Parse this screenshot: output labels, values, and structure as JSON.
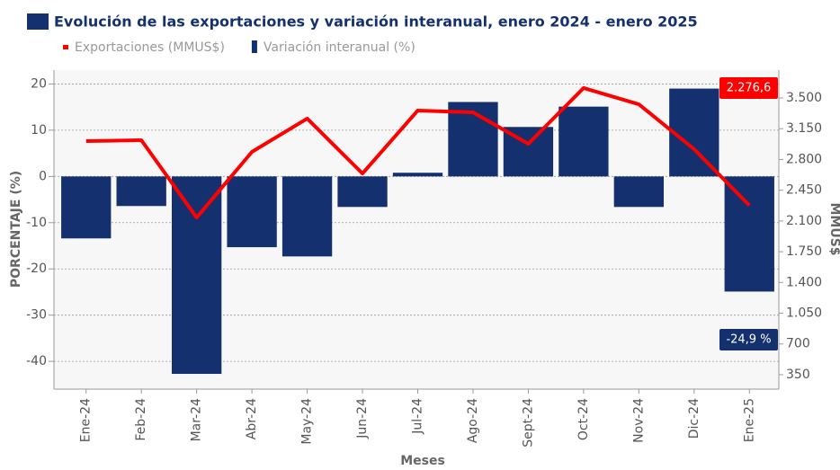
{
  "chart_data": {
    "type": "bar",
    "title": "Evolución de las exportaciones y variación interanual, enero 2024 - enero 2025",
    "x_label": "Meses",
    "y_label": "PORCENTAJE (%)",
    "y2_label": "MMUS$",
    "categories": [
      "Ene-24",
      "Feb-24",
      "Mar-24",
      "Abr-24",
      "May-24",
      "Jun-24",
      "Jul-24",
      "Ago-24",
      "Sept-24",
      "Oct-24",
      "Nov-24",
      "Dic-24",
      "Ene-25"
    ],
    "series": [
      {
        "name": "Exportaciones (MMUS$)",
        "type": "line",
        "axis": "y2",
        "color": "#ff0000",
        "values": [
          3009,
          3019,
          2139,
          2886,
          3265,
          2640,
          3357,
          3336,
          2978,
          3613,
          3428,
          2917,
          2276.6
        ],
        "value_labels": [
          null,
          null,
          null,
          null,
          null,
          null,
          null,
          null,
          null,
          null,
          null,
          null,
          "2.276,6"
        ]
      },
      {
        "name": "Variación interanual (%)",
        "type": "bar",
        "color": "#14306e",
        "values": [
          -13.4,
          -6.4,
          -42.7,
          -15.3,
          -17.3,
          -6.6,
          0.8,
          16.1,
          10.7,
          15.1,
          -6.6,
          19.0,
          -24.9
        ],
        "value_labels": [
          null,
          null,
          null,
          null,
          null,
          null,
          null,
          null,
          null,
          null,
          null,
          null,
          "-24,9 %"
        ]
      }
    ],
    "ylim": [
      -46,
      23
    ],
    "yticks": [
      -40,
      -30,
      -20,
      -10,
      0,
      10,
      20
    ],
    "y2lim": [
      186,
      3817
    ],
    "y2ticks": [
      350,
      700,
      {
        "value": 1050,
        "label": "1.050"
      },
      {
        "value": 1400,
        "label": "1.400"
      },
      {
        "value": 1750,
        "label": "1.750"
      },
      {
        "value": 2100,
        "label": "2.100"
      },
      {
        "value": 2450,
        "label": "2.450"
      },
      {
        "value": 2800,
        "label": "2.800"
      },
      {
        "value": 3150,
        "label": "3.150"
      },
      {
        "value": 3500,
        "label": "3.500"
      }
    ],
    "grid": true
  }
}
